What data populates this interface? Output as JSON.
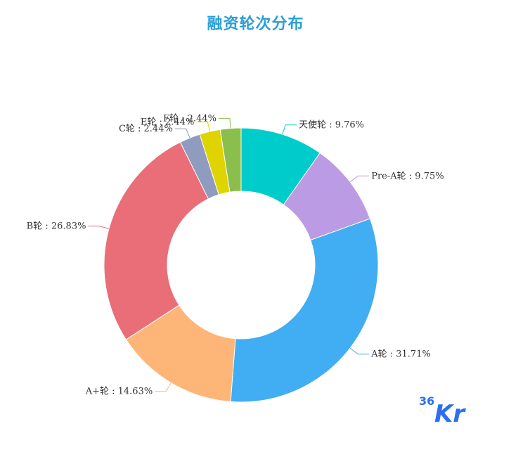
{
  "chart_data": {
    "type": "pie",
    "title": "融资轮次分布",
    "donut": true,
    "slices": [
      {
        "name": "天使轮",
        "value": 9.76,
        "label": "天使轮 : 9.76%",
        "color": "#00cccc"
      },
      {
        "name": "Pre-A轮",
        "value": 9.75,
        "label": "Pre-A轮 : 9.75%",
        "color": "#bb9be3"
      },
      {
        "name": "A轮",
        "value": 31.71,
        "label": "A轮 : 31.71%",
        "color": "#41adf2"
      },
      {
        "name": "A+轮",
        "value": 14.63,
        "label": "A+轮 : 14.63%",
        "color": "#fdb678"
      },
      {
        "name": "B轮",
        "value": 26.83,
        "label": "B轮 : 26.83%",
        "color": "#e96e78"
      },
      {
        "name": "C轮",
        "value": 2.44,
        "label": "C轮 : 2.44%",
        "color": "#8f9cbf"
      },
      {
        "name": "E轮",
        "value": 2.44,
        "label": "E轮 : 2.44%",
        "color": "#e0d400"
      },
      {
        "name": "F轮",
        "value": 2.44,
        "label": "F轮 : 2.44%",
        "color": "#8bbf4d"
      }
    ]
  },
  "logo": {
    "name": "36Kr",
    "color": "#2d6ff0"
  }
}
